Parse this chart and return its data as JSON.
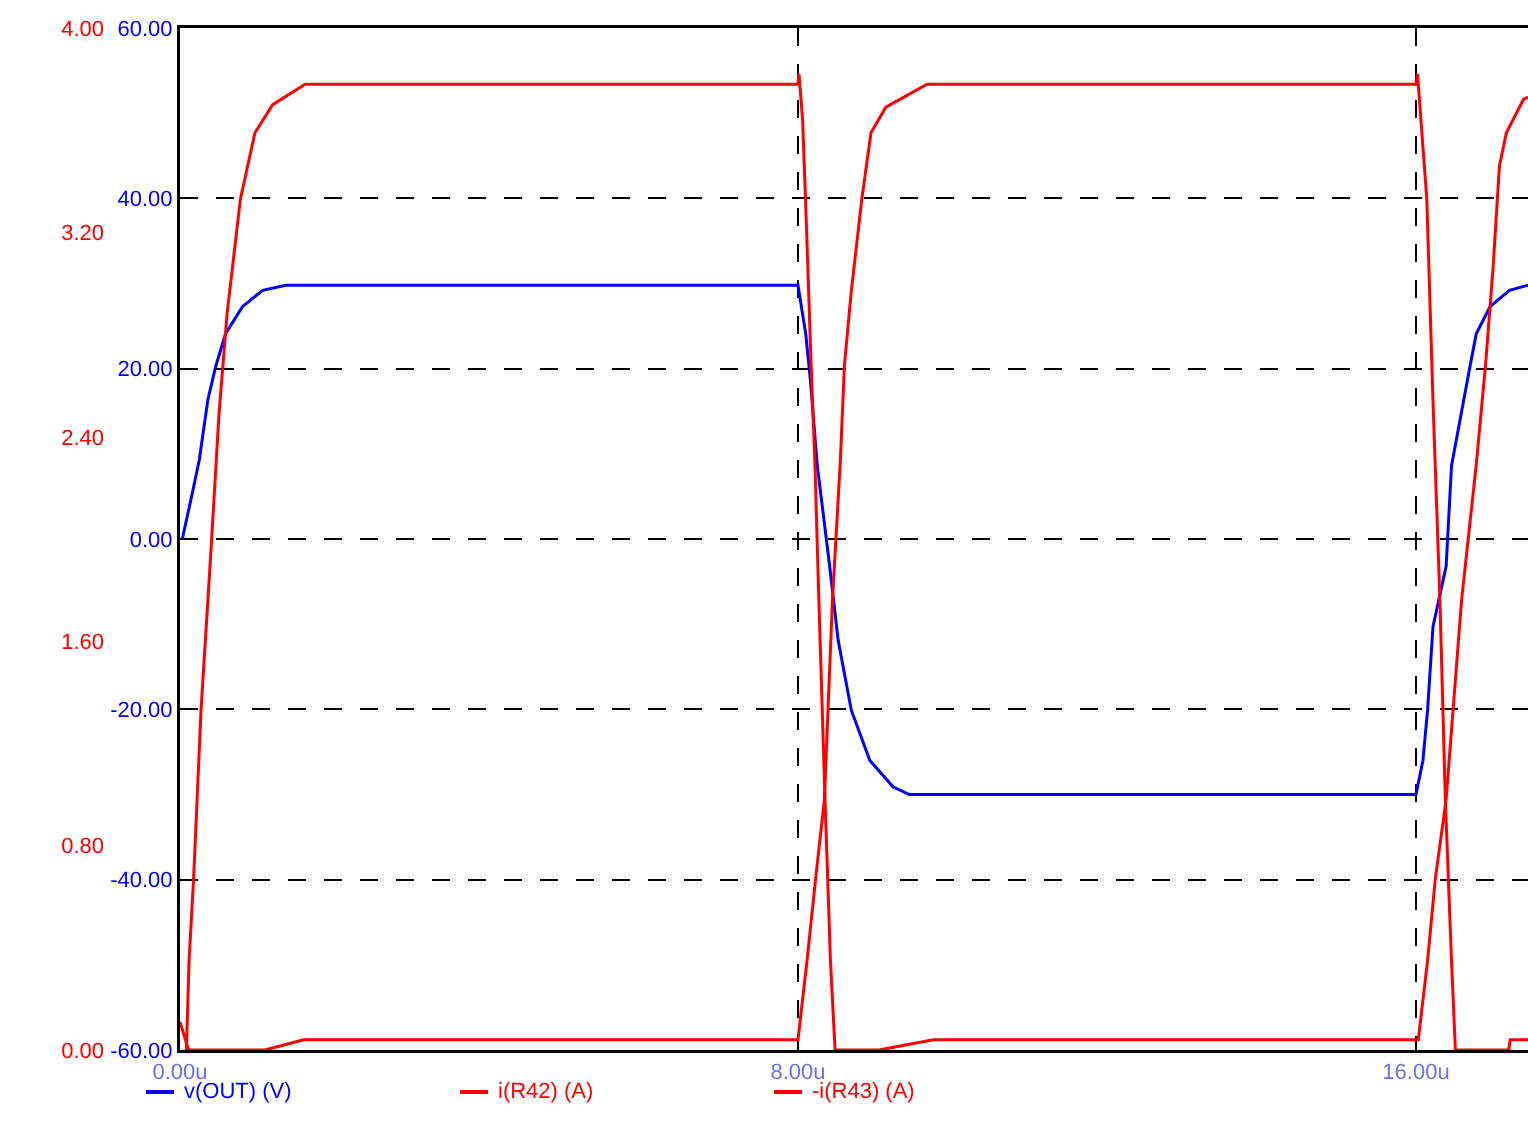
{
  "chart_data": {
    "type": "line",
    "xlim": [
      0,
      17.45
    ],
    "xticks": [
      {
        "value": 0,
        "label": "0.00u"
      },
      {
        "value": 8,
        "label": "8.00u"
      },
      {
        "value": 16,
        "label": "16.00u"
      }
    ],
    "ylim": [
      0,
      4
    ],
    "yticks": [
      {
        "value": 0,
        "label": "0.00"
      },
      {
        "value": 0.8,
        "label": "0.80"
      },
      {
        "value": 1.6,
        "label": "1.60"
      },
      {
        "value": 2.4,
        "label": "2.40"
      },
      {
        "value": 3.2,
        "label": "3.20"
      },
      {
        "value": 4,
        "label": "4.00"
      }
    ],
    "y2lim": [
      -60,
      60
    ],
    "y2ticks": [
      {
        "value": -60,
        "label": "-60.00"
      },
      {
        "value": -40,
        "label": "-40.00"
      },
      {
        "value": -20,
        "label": "-20.00"
      },
      {
        "value": 0,
        "label": "0.00"
      },
      {
        "value": 20,
        "label": "20.00"
      },
      {
        "value": 40,
        "label": "40.00"
      },
      {
        "value": 60,
        "label": "60.00"
      }
    ],
    "grid": true,
    "legend": "bottom",
    "marker": "none",
    "line_style": "solid",
    "series": [
      {
        "name": "v(OUT) (V)",
        "color": "#0000ff",
        "axis": "y2",
        "x": [
          0.03,
          0.16,
          0.25,
          0.36,
          0.46,
          0.59,
          0.81,
          1.07,
          1.37,
          8.0,
          8.1,
          8.16,
          8.25,
          8.41,
          8.52,
          8.69,
          8.93,
          9.23,
          9.44,
          16.0,
          16.09,
          16.15,
          16.22,
          16.39,
          16.46,
          16.7,
          16.78,
          16.96,
          17.21,
          17.45
        ],
        "values": [
          0,
          5.4,
          9.3,
          16.3,
          20.2,
          24.1,
          27.3,
          29.2,
          29.8,
          29.8,
          24.1,
          18.7,
          8.6,
          -3.2,
          -11.9,
          -20.1,
          -26.0,
          -29.1,
          -30.0,
          -30.0,
          -26.0,
          -20.1,
          -10.3,
          -3.2,
          8.6,
          20.3,
          24.1,
          27.3,
          29.2,
          29.8
        ]
      },
      {
        "name": "i(R42) (A)",
        "color": "#ff0000",
        "x": [
          0.083,
          0.117,
          0.176,
          0.272,
          0.394,
          0.505,
          0.609,
          0.782,
          0.97,
          1.2,
          1.62,
          8.0,
          8.013,
          8.06,
          8.11,
          8.17,
          8.22,
          8.27,
          8.35,
          8.42,
          8.48,
          9.05,
          9.75,
          16.03,
          16.15,
          16.25,
          16.39,
          16.59,
          16.78,
          16.9,
          17.0,
          17.08,
          17.17,
          17.39,
          17.45
        ],
        "values": [
          0,
          0.35,
          0.67,
          1.33,
          1.92,
          2.49,
          2.88,
          3.33,
          3.59,
          3.7,
          3.78,
          3.78,
          3.82,
          3.64,
          3.22,
          2.68,
          2.29,
          1.76,
          0.98,
          0.35,
          0,
          0,
          0.04,
          0.04,
          0.35,
          0.67,
          0.98,
          1.76,
          2.29,
          2.68,
          3.07,
          3.46,
          3.59,
          3.72,
          3.73
        ]
      },
      {
        "name": "-i(R43) (A)",
        "color": "#ff0000",
        "x": [
          0,
          0.11,
          1.1,
          1.6,
          8.0,
          8.117,
          8.228,
          8.342,
          8.446,
          8.549,
          8.601,
          8.687,
          8.826,
          8.945,
          9.137,
          9.671,
          16.0,
          16.02,
          16.14,
          16.22,
          16.31,
          16.38,
          16.46,
          16.51,
          17.2,
          17.22,
          17.45
        ],
        "values": [
          0.11,
          0,
          0,
          0.04,
          0.04,
          0.35,
          0.67,
          0.98,
          1.76,
          2.31,
          2.68,
          2.96,
          3.33,
          3.59,
          3.69,
          3.78,
          3.78,
          3.82,
          3.33,
          2.54,
          1.76,
          0.98,
          0.35,
          0,
          0,
          0.04,
          0.04
        ]
      }
    ]
  }
}
